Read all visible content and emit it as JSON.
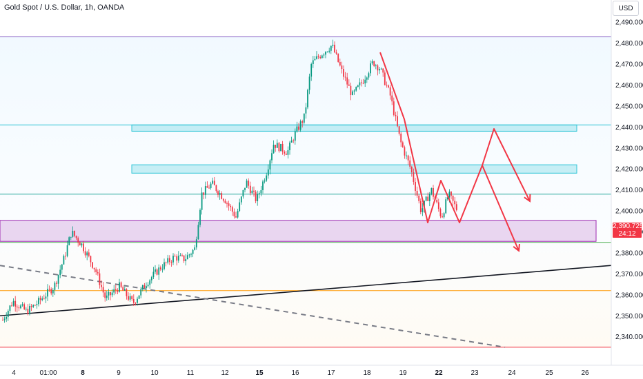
{
  "header": {
    "title": "Gold Spot / U.S. Dollar, 1h, OANDA",
    "currency_label": "USD"
  },
  "price_badge": {
    "price": "2,390.725",
    "countdown": "24:12",
    "color": "#f23645"
  },
  "colors": {
    "up": "#089981",
    "down": "#f23645",
    "zone_blue": "#2fc4d6",
    "zone_purple": "#9c27b0",
    "arrow": "#f23645",
    "trend": "#131722",
    "orange": "#ff9800",
    "red_line": "#f23645"
  },
  "chart_data": {
    "type": "candlestick",
    "instrument": "Gold Spot / U.S. Dollar",
    "timeframe": "1h",
    "source": "OANDA",
    "ylim": [
      2333,
      2494
    ],
    "y_ticks": [
      2340,
      2350,
      2360,
      2370,
      2380,
      2390,
      2400,
      2410,
      2420,
      2430,
      2440,
      2450,
      2460,
      2470,
      2480,
      2490
    ],
    "y_tick_labels": [
      "2,340.000",
      "2,350.000",
      "2,360.000",
      "2,370.000",
      "2,380.000",
      "2,390.000",
      "2,400.000",
      "2,410.000",
      "2,420.000",
      "2,430.000",
      "2,440.000",
      "2,450.000",
      "2,460.000",
      "2,470.000",
      "2,480.000",
      "2,490.000"
    ],
    "x_range": [
      3.6,
      26.8
    ],
    "x_ticks": [
      {
        "x": 4,
        "label": "4",
        "bold": false
      },
      {
        "x": 5,
        "label": "01:00",
        "bold": false
      },
      {
        "x": 6,
        "label": "8",
        "bold": true
      },
      {
        "x": 7,
        "label": "9",
        "bold": false
      },
      {
        "x": 8,
        "label": "10",
        "bold": false
      },
      {
        "x": 9,
        "label": "11",
        "bold": false
      },
      {
        "x": 10,
        "label": "12",
        "bold": false
      },
      {
        "x": 11,
        "label": "15",
        "bold": true
      },
      {
        "x": 12,
        "label": "16",
        "bold": false
      },
      {
        "x": 13,
        "label": "17",
        "bold": false
      },
      {
        "x": 14,
        "label": "18",
        "bold": false
      },
      {
        "x": 15,
        "label": "19",
        "bold": false
      },
      {
        "x": 16,
        "label": "22",
        "bold": true
      },
      {
        "x": 17,
        "label": "23",
        "bold": false
      },
      {
        "x": 18,
        "label": "24",
        "bold": false
      },
      {
        "x": 19,
        "label": "25",
        "bold": false
      },
      {
        "x": 20,
        "label": "26",
        "bold": false
      }
    ],
    "price_path": [
      [
        4.0,
        2348
      ],
      [
        4.3,
        2357
      ],
      [
        4.7,
        2352
      ],
      [
        5.0,
        2356
      ],
      [
        5.5,
        2364
      ],
      [
        5.8,
        2378
      ],
      [
        6.0,
        2390
      ],
      [
        6.3,
        2384
      ],
      [
        6.7,
        2372
      ],
      [
        7.0,
        2358
      ],
      [
        7.4,
        2364
      ],
      [
        7.8,
        2356
      ],
      [
        8.2,
        2366
      ],
      [
        8.6,
        2373
      ],
      [
        9.0,
        2378
      ],
      [
        9.3,
        2377
      ],
      [
        9.6,
        2382
      ],
      [
        9.8,
        2408
      ],
      [
        10.1,
        2413
      ],
      [
        10.5,
        2405
      ],
      [
        10.8,
        2397
      ],
      [
        11.1,
        2414
      ],
      [
        11.4,
        2405
      ],
      [
        11.7,
        2419
      ],
      [
        11.9,
        2432
      ],
      [
        12.3,
        2428
      ],
      [
        12.5,
        2436
      ],
      [
        12.8,
        2445
      ],
      [
        13.0,
        2470
      ],
      [
        13.3,
        2475
      ],
      [
        13.6,
        2479
      ],
      [
        13.9,
        2466
      ],
      [
        14.2,
        2455
      ],
      [
        14.5,
        2462
      ],
      [
        14.8,
        2471
      ],
      [
        15.0,
        2468
      ],
      [
        15.3,
        2455
      ],
      [
        15.6,
        2433
      ],
      [
        15.9,
        2420
      ],
      [
        16.2,
        2400
      ],
      [
        16.5,
        2410
      ],
      [
        16.8,
        2397
      ],
      [
        17.0,
        2408
      ],
      [
        17.3,
        2399
      ]
    ],
    "zones": [
      {
        "name": "upper-resistance",
        "from": 2438,
        "to": 2441,
        "x_start": 7.5,
        "x_end": 24.4,
        "color": "#2fc4d6"
      },
      {
        "name": "mid-resistance",
        "from": 2418,
        "to": 2422,
        "x_start": 7.5,
        "x_end": 24.4,
        "color": "#2fc4d6"
      },
      {
        "name": "support",
        "from": 2385.5,
        "to": 2395.5,
        "x_start": 3.6,
        "x_end": 25.3,
        "color": "#9c27b0"
      }
    ],
    "horizontal_lines": [
      {
        "price": 2483,
        "color": "#7e57c2"
      },
      {
        "price": 2441,
        "color": "#2fc4d6"
      },
      {
        "price": 2408,
        "color": "#26a69a"
      },
      {
        "price": 2385,
        "color": "#4caf50"
      },
      {
        "price": 2362,
        "color": "#ff9800"
      },
      {
        "price": 2335,
        "color": "#f23645"
      }
    ],
    "trendlines": [
      {
        "name": "support-trendline",
        "from": [
          3.6,
          2350
        ],
        "to": [
          26.8,
          2374
        ],
        "color": "#131722",
        "dashed": false
      },
      {
        "name": "dashed-trendline",
        "from": [
          3.6,
          2374
        ],
        "to": [
          22.2,
          2335
        ],
        "color": "#787b86",
        "dashed": true
      }
    ],
    "projection_path": [
      [
        16.2,
        2475
      ],
      [
        17.8,
        2425
      ],
      [
        18.5,
        2393
      ],
      [
        19.0,
        2412
      ],
      [
        19.7,
        2393
      ],
      [
        20.5,
        2419
      ],
      [
        21.3,
        2437
      ],
      [
        22.2,
        2402
      ]
    ],
    "projection_branch": [
      [
        20.5,
        2419
      ],
      [
        21.9,
        2381
      ]
    ]
  }
}
